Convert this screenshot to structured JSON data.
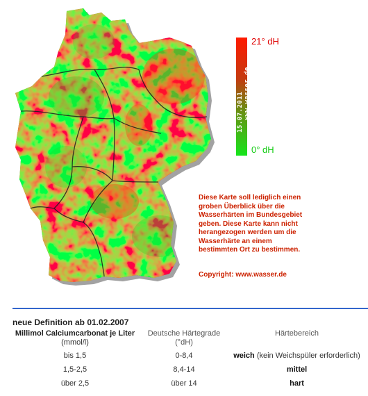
{
  "legend": {
    "max_label": "21° dH",
    "min_label": "0° dH",
    "site": "www.wasser.de",
    "date": "15.07.2011",
    "colors": {
      "high": "#ff1a00",
      "mid": "#7a7a10",
      "low": "#16e51c"
    }
  },
  "note": {
    "text": "Diese Karte soll lediglich einen groben Überblick über die Wasserhärten im Bundesgebiet geben. Diese Karte kann nicht herangezogen werden um die Wasserhärte an einem bestimmten Ort zu bestimmen.",
    "copyright": "Copyright: www.wasser.de"
  },
  "definition": {
    "title": "neue Definition ab 01.02.2007",
    "columns": {
      "mmol_line1": "Millimol Calciumcarbonat je Liter",
      "mmol_line2": "(mmol/l)",
      "dh_line1": "Deutsche Härtegrade",
      "dh_line2": "(°dH)",
      "range": "Härtebereich"
    },
    "rows": [
      {
        "mmol": "bis 1,5",
        "dh": "0-8,4",
        "range": "weich",
        "note": "(kein Weichspüler erforderlich)"
      },
      {
        "mmol": "1,5-2,5",
        "dh": "8,4-14",
        "range": "mittel",
        "note": ""
      },
      {
        "mmol": "über 2,5",
        "dh": "über 14",
        "range": "hart",
        "note": ""
      }
    ]
  }
}
